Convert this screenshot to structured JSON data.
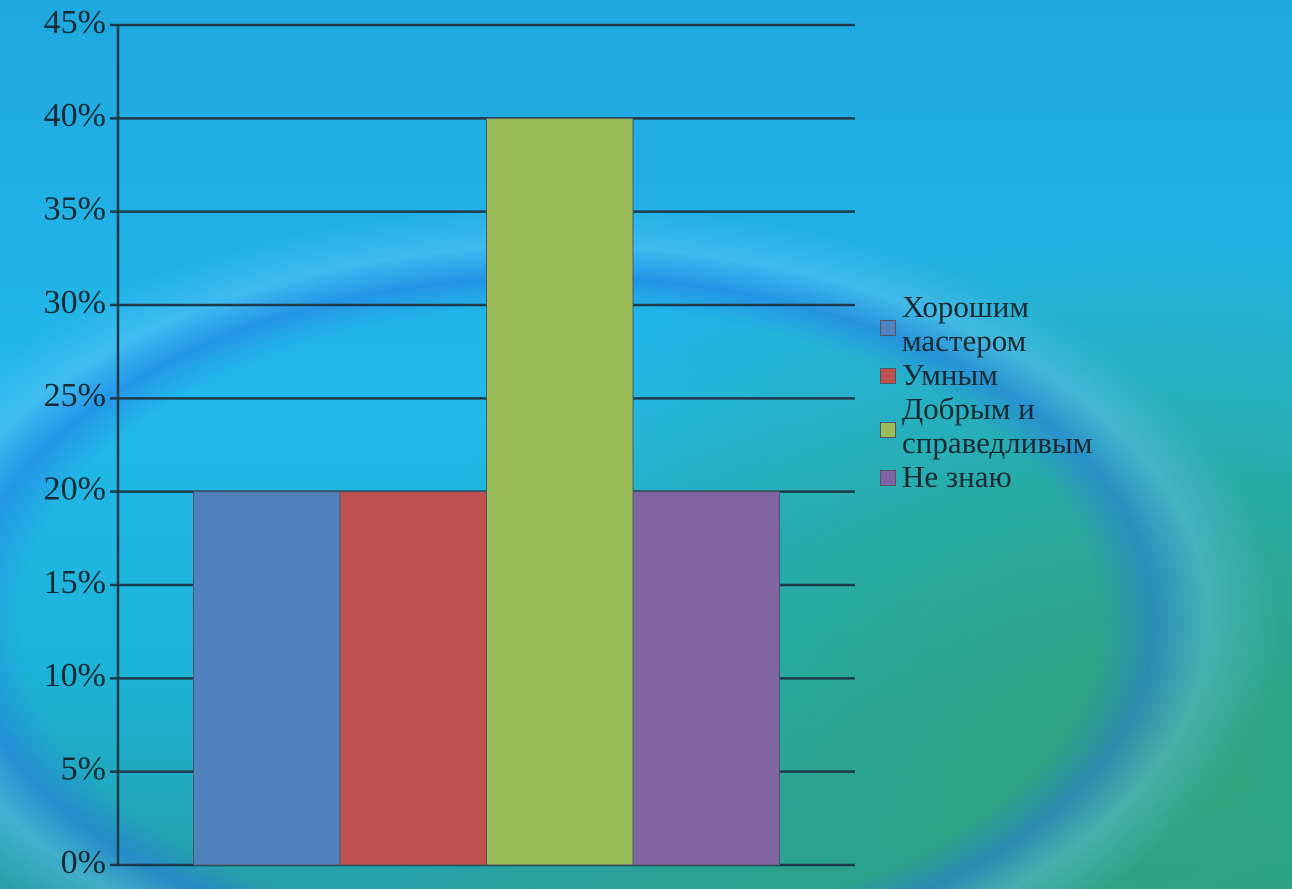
{
  "chart_data": {
    "type": "bar",
    "categories": [
      null
    ],
    "series": [
      {
        "name": "Хорошим мастером",
        "color": "#4f81bd",
        "values": [
          20
        ]
      },
      {
        "name": "Умным",
        "color": "#c0504d",
        "values": [
          20
        ]
      },
      {
        "name": "Добрым и справедливым",
        "color": "#9bbb59",
        "values": [
          40
        ]
      },
      {
        "name": "Не знаю",
        "color": "#8064a2",
        "values": [
          20
        ]
      }
    ],
    "ylim": [
      0,
      45
    ],
    "yticks": [
      {
        "value": 0,
        "label": "0%"
      },
      {
        "value": 5,
        "label": "5%"
      },
      {
        "value": 10,
        "label": "10%"
      },
      {
        "value": 15,
        "label": "15%"
      },
      {
        "value": 20,
        "label": "20%"
      },
      {
        "value": 25,
        "label": "25%"
      },
      {
        "value": 30,
        "label": "30%"
      },
      {
        "value": 35,
        "label": "35%"
      },
      {
        "value": 40,
        "label": "40%"
      },
      {
        "value": 45,
        "label": "45%"
      }
    ],
    "grid": true,
    "legend": "right"
  }
}
